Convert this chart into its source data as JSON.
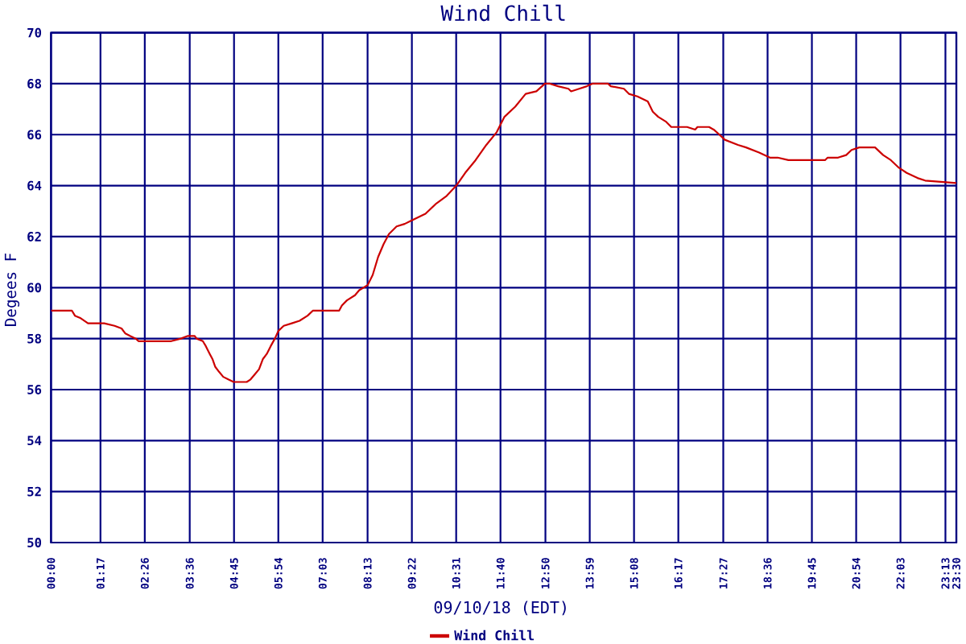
{
  "chart_data": {
    "type": "line",
    "title": "Wind Chill",
    "xlabel": "09/10/18 (EDT)",
    "ylabel": "Degees F",
    "x": [
      0,
      0.54,
      0.62,
      0.77,
      0.96,
      1.38,
      1.65,
      1.83,
      1.93,
      2.06,
      2.2,
      2.27,
      2.8,
      3.12,
      3.37,
      3.54,
      3.73,
      3.78,
      3.94,
      4.02,
      4.12,
      4.19,
      4.26,
      4.36,
      4.47,
      4.6,
      4.74,
      5.08,
      5.18,
      5.29,
      5.4,
      5.5,
      5.6,
      5.7,
      5.81,
      5.9,
      6.04,
      6.25,
      6.45,
      6.66,
      6.8,
      7.48,
      7.55,
      7.68,
      7.89,
      8.0,
      8.22,
      8.35,
      8.49,
      8.63,
      8.77,
      8.97,
      9.18,
      9.45,
      9.72,
      10.0,
      10.27,
      10.52,
      10.75,
      11.02,
      11.3,
      11.57,
      11.77,
      12.05,
      12.32,
      12.6,
      12.82,
      12.95,
      13.16,
      13.43,
      13.5,
      13.71,
      13.91,
      14.05,
      14.46,
      14.53,
      14.87,
      15.0,
      15.22,
      15.49,
      15.62,
      15.76,
      15.97,
      16.1,
      16.31,
      16.51,
      16.72,
      16.78,
      17.08,
      17.2,
      17.35,
      17.49,
      17.83,
      18.04,
      18.38,
      18.66,
      18.86,
      19.14,
      19.41,
      20.09,
      20.16,
      20.43,
      20.64,
      20.78,
      20.98,
      21.39,
      21.6,
      21.8,
      22.01,
      22.21,
      22.49,
      22.69,
      23.5
    ],
    "series": [
      {
        "name": "Wind Chill",
        "color": "#cc0000",
        "values": [
          59.1,
          59.1,
          58.9,
          58.8,
          58.6,
          58.6,
          58.5,
          58.4,
          58.2,
          58.1,
          58.0,
          57.9,
          57.9,
          57.9,
          58.0,
          58.1,
          58.1,
          58.0,
          57.9,
          57.7,
          57.4,
          57.2,
          56.9,
          56.7,
          56.5,
          56.4,
          56.3,
          56.3,
          56.4,
          56.6,
          56.8,
          57.2,
          57.4,
          57.7,
          58.0,
          58.3,
          58.5,
          58.6,
          58.7,
          58.9,
          59.1,
          59.1,
          59.3,
          59.5,
          59.7,
          59.9,
          60.1,
          60.5,
          61.2,
          61.7,
          62.1,
          62.4,
          62.5,
          62.7,
          62.9,
          63.3,
          63.6,
          64.0,
          64.5,
          65.0,
          65.6,
          66.1,
          66.7,
          67.1,
          67.6,
          67.7,
          68.0,
          68.0,
          67.9,
          67.8,
          67.7,
          67.8,
          67.9,
          68.0,
          68.0,
          67.9,
          67.8,
          67.6,
          67.5,
          67.3,
          66.9,
          66.7,
          66.5,
          66.3,
          66.3,
          66.3,
          66.2,
          66.3,
          66.3,
          66.2,
          66.0,
          65.8,
          65.6,
          65.5,
          65.3,
          65.1,
          65.1,
          65.0,
          65.0,
          65.0,
          65.1,
          65.1,
          65.2,
          65.4,
          65.5,
          65.5,
          65.2,
          65.0,
          64.7,
          64.5,
          64.3,
          64.2,
          64.1
        ]
      }
    ],
    "xlim": [
      0,
      23.5
    ],
    "xticks": [
      {
        "value": 0,
        "label": "00:00"
      },
      {
        "value": 1.2833,
        "label": "01:17"
      },
      {
        "value": 2.4333,
        "label": "02:26"
      },
      {
        "value": 3.6,
        "label": "03:36"
      },
      {
        "value": 4.75,
        "label": "04:45"
      },
      {
        "value": 5.9,
        "label": "05:54"
      },
      {
        "value": 7.05,
        "label": "07:03"
      },
      {
        "value": 8.2167,
        "label": "08:13"
      },
      {
        "value": 9.3667,
        "label": "09:22"
      },
      {
        "value": 10.5167,
        "label": "10:31"
      },
      {
        "value": 11.6667,
        "label": "11:40"
      },
      {
        "value": 12.8333,
        "label": "12:50"
      },
      {
        "value": 13.9833,
        "label": "13:59"
      },
      {
        "value": 15.1333,
        "label": "15:08"
      },
      {
        "value": 16.2833,
        "label": "16:17"
      },
      {
        "value": 17.45,
        "label": "17:27"
      },
      {
        "value": 18.6,
        "label": "18:36"
      },
      {
        "value": 19.75,
        "label": "19:45"
      },
      {
        "value": 20.9,
        "label": "20:54"
      },
      {
        "value": 22.05,
        "label": "22:03"
      },
      {
        "value": 23.2167,
        "label": "23:13"
      },
      {
        "value": 23.5,
        "label": "23:30"
      }
    ],
    "ylim": [
      50,
      70
    ],
    "yticks": [
      50,
      52,
      54,
      56,
      58,
      60,
      62,
      64,
      66,
      68,
      70
    ],
    "grid": true,
    "legend": "bottom",
    "line_style": "solid"
  }
}
